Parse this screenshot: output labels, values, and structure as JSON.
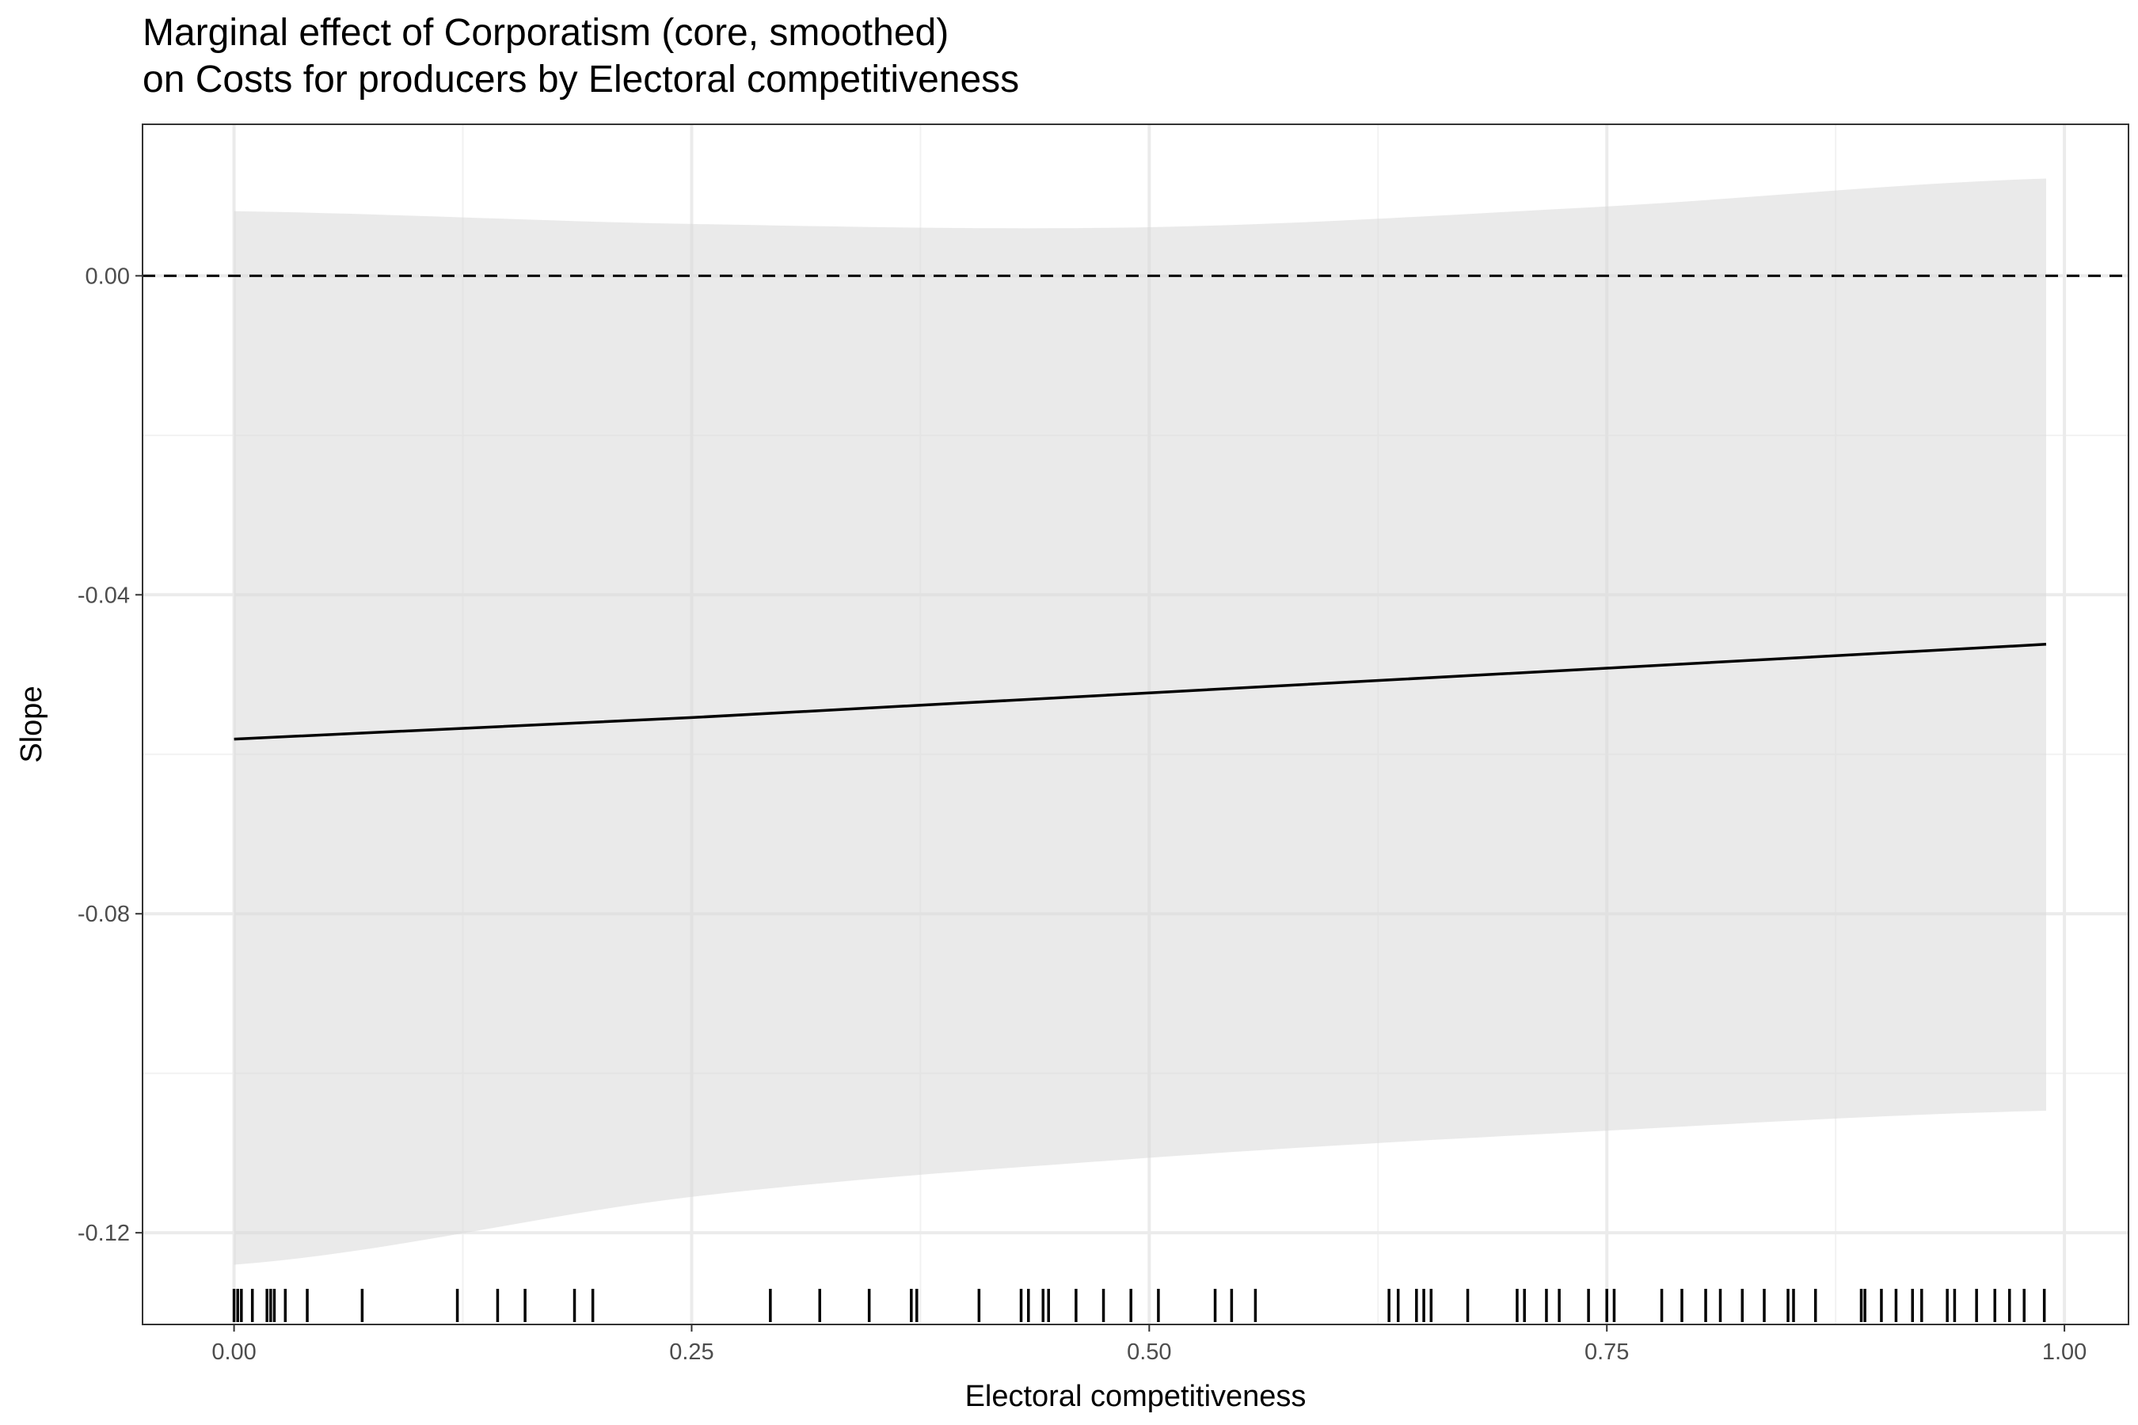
{
  "chart_data": {
    "type": "line",
    "title_lines": [
      "Marginal effect of Corporatism (core, smoothed)",
      "on Costs for producers by Electoral competitiveness"
    ],
    "xlabel": "Electoral competitiveness",
    "ylabel": "Slope",
    "xlim": [
      -0.05,
      1.035
    ],
    "ylim": [
      -0.1315,
      0.019
    ],
    "x_ticks": [
      0.0,
      0.25,
      0.5,
      0.75,
      1.0
    ],
    "x_tick_labels": [
      "0.00",
      "0.25",
      "0.50",
      "0.75",
      "1.00"
    ],
    "y_ticks": [
      0.0,
      -0.04,
      -0.08,
      -0.12
    ],
    "y_tick_labels": [
      "0.00",
      "-0.04",
      "-0.08",
      "-0.12"
    ],
    "grid": true,
    "reference_line": {
      "y": 0.0,
      "style": "dashed"
    },
    "series": [
      {
        "x": [
          0.0,
          0.25,
          0.5,
          0.75,
          0.99
        ],
        "y": [
          -0.0581,
          -0.0554,
          -0.0523,
          -0.0492,
          -0.0462
        ],
        "ci_lower": [
          -0.124,
          -0.1155,
          -0.1106,
          -0.1072,
          -0.1047
        ],
        "ci_upper": [
          0.0081,
          0.0065,
          0.0061,
          0.0087,
          0.0122
        ]
      }
    ],
    "rug_x": [
      0.0,
      0.002,
      0.004,
      0.01,
      0.018,
      0.02,
      0.022,
      0.028,
      0.04,
      0.07,
      0.122,
      0.144,
      0.159,
      0.186,
      0.196,
      0.293,
      0.32,
      0.347,
      0.37,
      0.373,
      0.407,
      0.43,
      0.434,
      0.442,
      0.445,
      0.46,
      0.475,
      0.49,
      0.505,
      0.536,
      0.545,
      0.558,
      0.631,
      0.636,
      0.646,
      0.65,
      0.654,
      0.674,
      0.701,
      0.705,
      0.717,
      0.724,
      0.74,
      0.75,
      0.754,
      0.78,
      0.791,
      0.804,
      0.812,
      0.824,
      0.836,
      0.849,
      0.852,
      0.864,
      0.889,
      0.891,
      0.9,
      0.908,
      0.917,
      0.922,
      0.936,
      0.94,
      0.952,
      0.962,
      0.97,
      0.978,
      0.989
    ]
  }
}
